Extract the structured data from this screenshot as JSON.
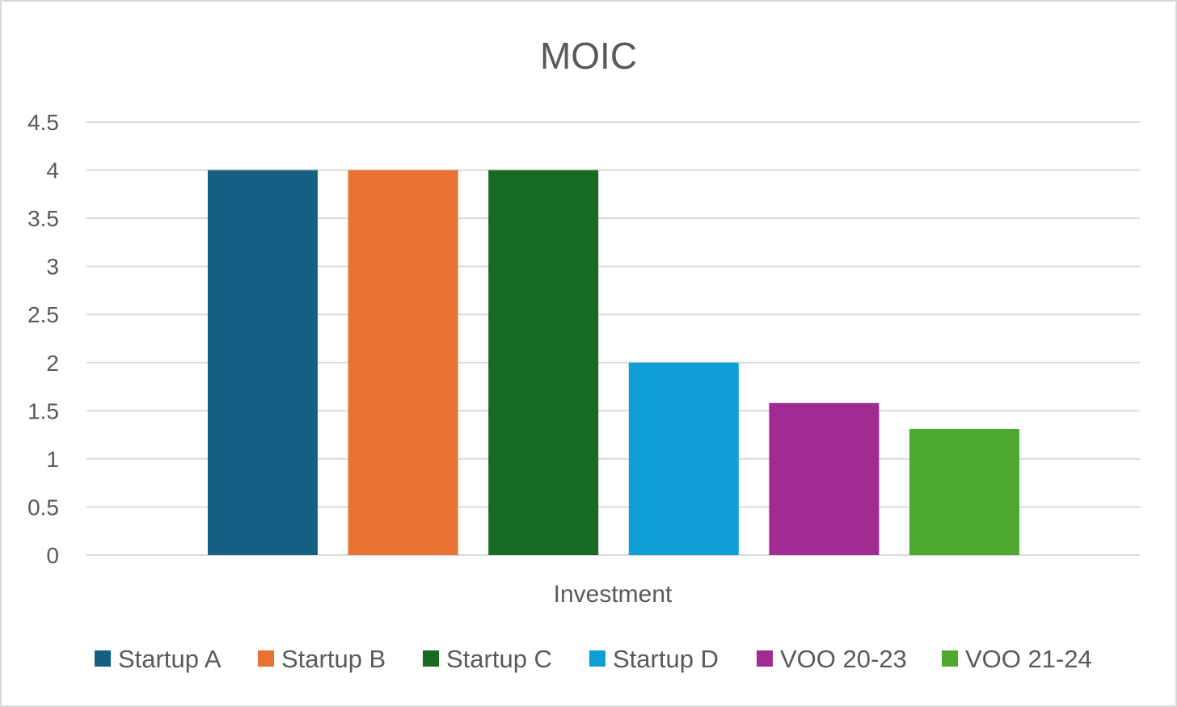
{
  "chart_data": {
    "type": "bar",
    "title": "MOIC",
    "xlabel": "Investment",
    "ylabel": "",
    "ylim": [
      0,
      4.5
    ],
    "ytick_values": [
      0,
      0.5,
      1,
      1.5,
      2,
      2.5,
      3,
      3.5,
      4,
      4.5
    ],
    "ytick_labels": [
      "0",
      "0.5",
      "1",
      "1.5",
      "2",
      "2.5",
      "3",
      "3.5",
      "4",
      "4.5"
    ],
    "grid": true,
    "legend_position": "bottom",
    "categories": [
      "Investment"
    ],
    "series": [
      {
        "name": "Startup A",
        "values": [
          4
        ],
        "color": "#156082"
      },
      {
        "name": "Startup B",
        "values": [
          4
        ],
        "color": "#E97132"
      },
      {
        "name": "Startup C",
        "values": [
          4
        ],
        "color": "#196B24"
      },
      {
        "name": "Startup D",
        "values": [
          2
        ],
        "color": "#0F9ED5"
      },
      {
        "name": "VOO 20-23",
        "values": [
          1.58
        ],
        "color": "#A02B93"
      },
      {
        "name": "VOO 21-24",
        "values": [
          1.31
        ],
        "color": "#4EA72E"
      }
    ]
  }
}
